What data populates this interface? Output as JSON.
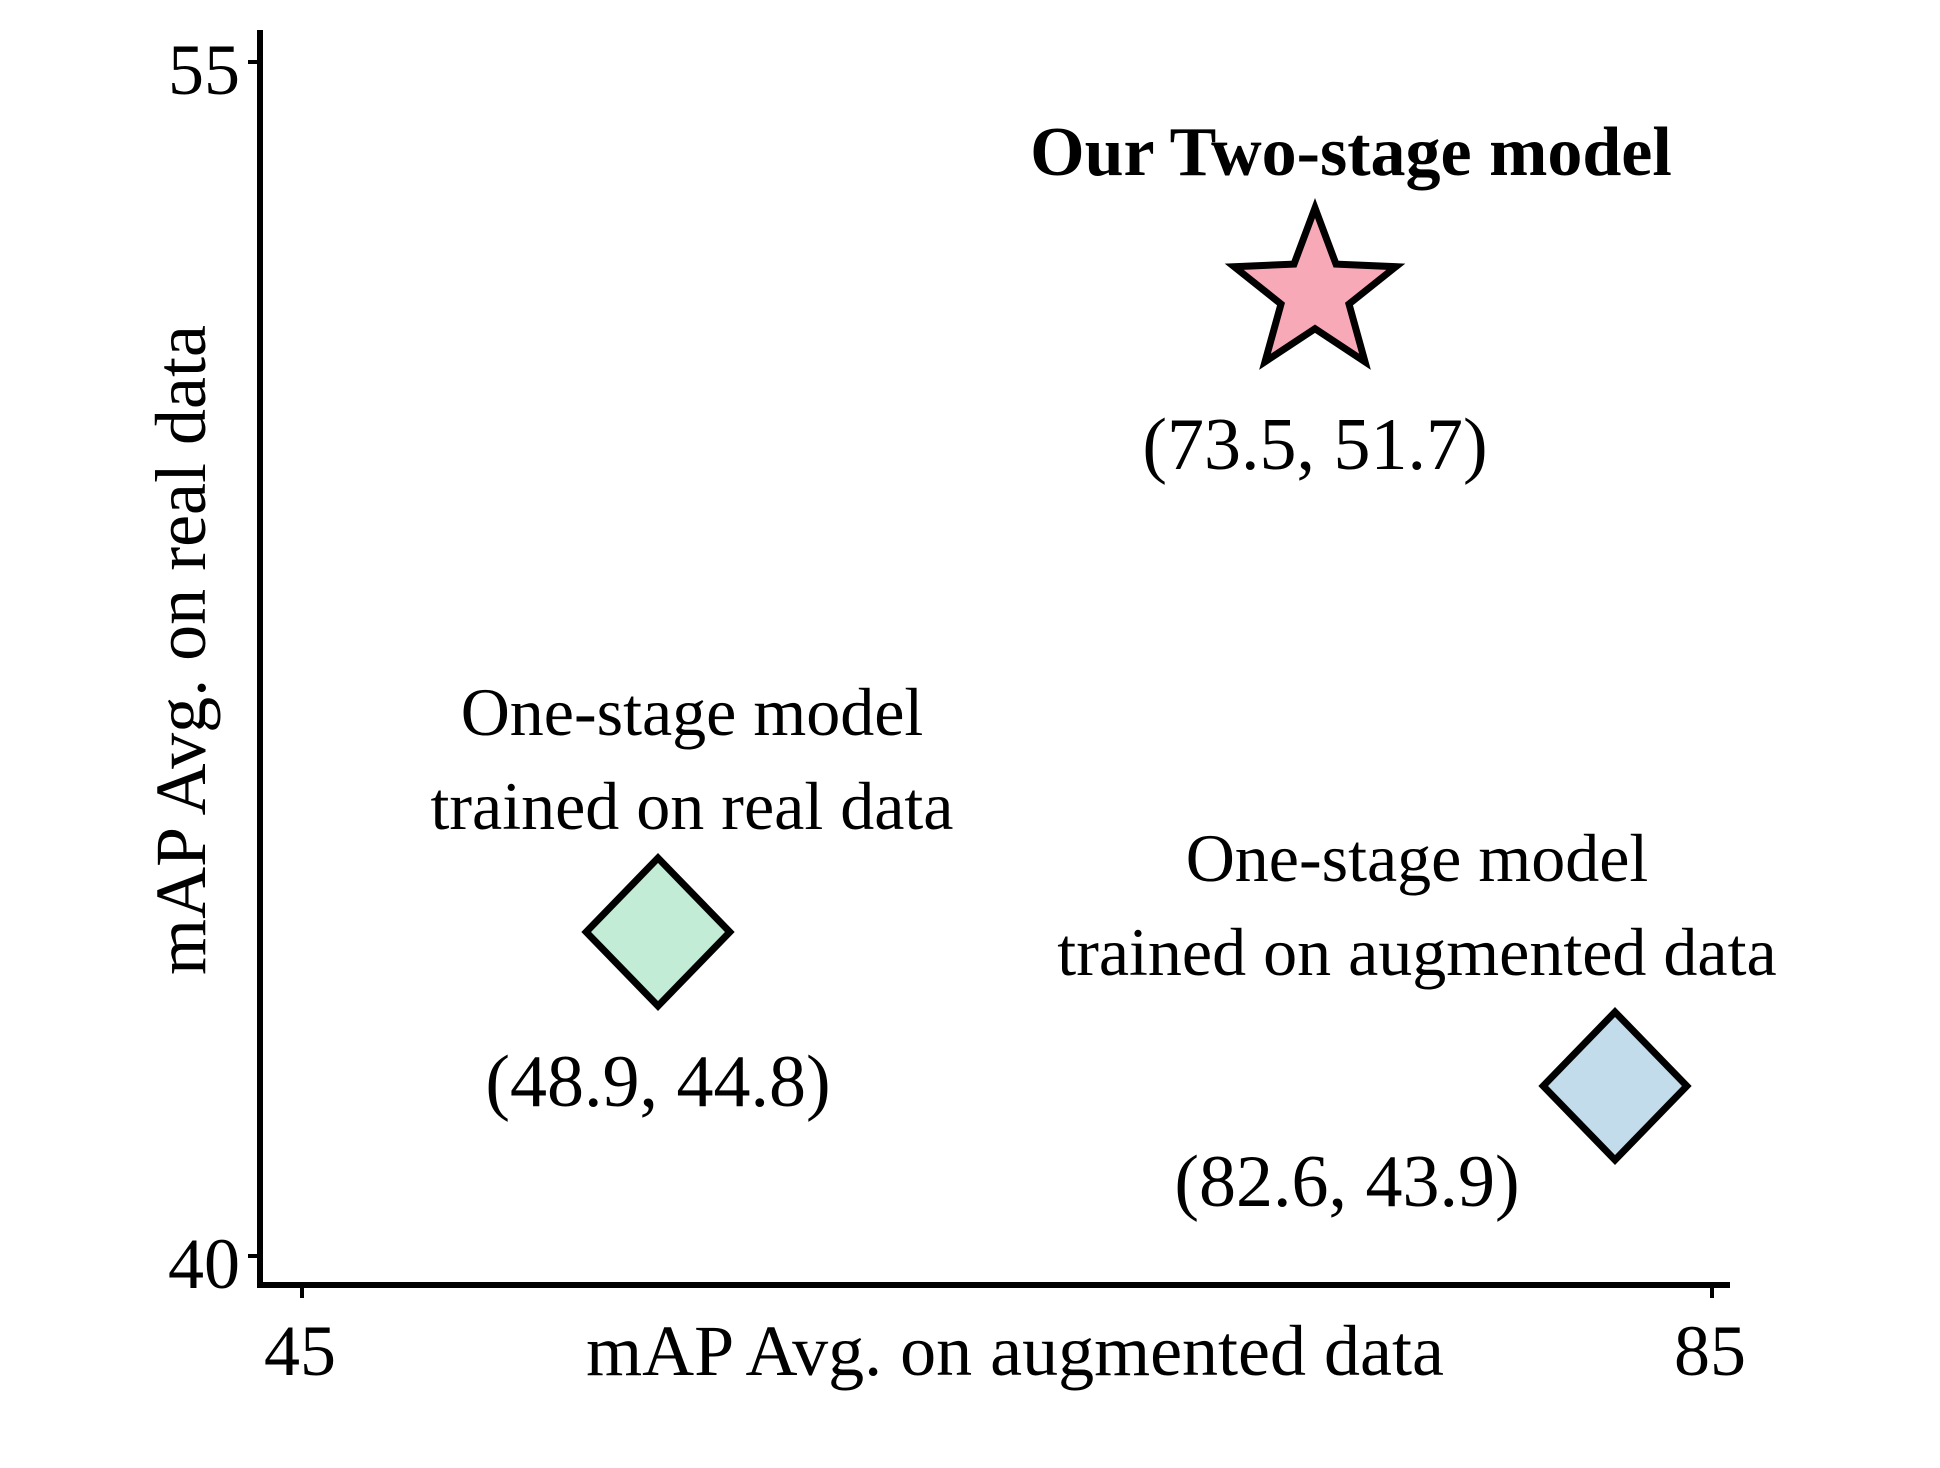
{
  "chart_data": {
    "type": "scatter",
    "title": "",
    "xlabel": "mAP Avg. on augmented data",
    "ylabel": "mAP Avg. on real data",
    "xlim": [
      45,
      85
    ],
    "ylim": [
      40,
      55
    ],
    "x_ticks": [
      "45",
      "85"
    ],
    "y_ticks": [
      "40",
      "55"
    ],
    "grid": false,
    "points": [
      {
        "name_lines": [
          "Our Two-stage model"
        ],
        "bold": true,
        "x": 73.5,
        "y": 51.7,
        "label": "(73.5, 51.7)",
        "marker": "star",
        "color": "#f8a9b8"
      },
      {
        "name_lines": [
          "One-stage model",
          "trained on real data"
        ],
        "bold": false,
        "x": 48.9,
        "y": 44.8,
        "label": "(48.9, 44.8)",
        "marker": "diamond",
        "color": "#c3ecd6"
      },
      {
        "name_lines": [
          "One-stage model",
          "trained on augmented data"
        ],
        "bold": false,
        "x": 82.6,
        "y": 43.9,
        "label": "(82.6, 43.9)",
        "marker": "diamond",
        "color": "#c2dcec"
      }
    ]
  }
}
